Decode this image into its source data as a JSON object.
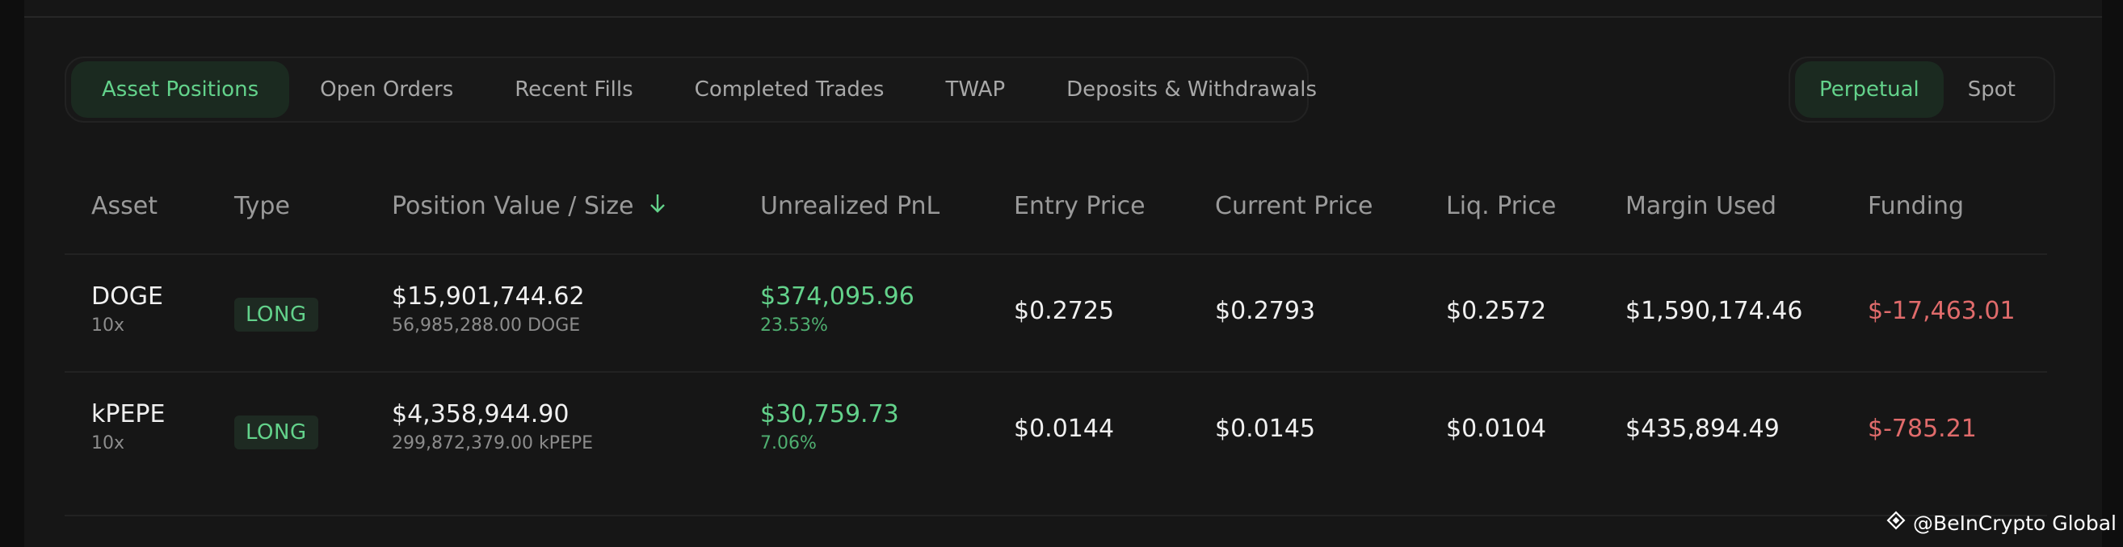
{
  "tabs": [
    {
      "label": "Asset Positions",
      "active": true
    },
    {
      "label": "Open Orders",
      "active": false
    },
    {
      "label": "Recent Fills",
      "active": false
    },
    {
      "label": "Completed Trades",
      "active": false
    },
    {
      "label": "TWAP",
      "active": false
    },
    {
      "label": "Deposits & Withdrawals",
      "active": false
    }
  ],
  "mode": [
    {
      "label": "Perpetual",
      "active": true
    },
    {
      "label": "Spot",
      "active": false
    }
  ],
  "columns": {
    "asset": "Asset",
    "type": "Type",
    "position": "Position Value / Size",
    "sort_icon": "arrow-down-icon",
    "pnl": "Unrealized PnL",
    "entry": "Entry Price",
    "current": "Current Price",
    "liq": "Liq. Price",
    "margin": "Margin Used",
    "funding": "Funding"
  },
  "rows": [
    {
      "asset": "DOGE",
      "leverage": "10x",
      "type": "LONG",
      "position_value": "$15,901,744.62",
      "position_size": "56,985,288.00 DOGE",
      "pnl": "$374,095.96",
      "pnl_pct": "23.53%",
      "entry": "$0.2725",
      "current": "$0.2793",
      "liq": "$0.2572",
      "margin": "$1,590,174.46",
      "funding": "$-17,463.01"
    },
    {
      "asset": "kPEPE",
      "leverage": "10x",
      "type": "LONG",
      "position_value": "$4,358,944.90",
      "position_size": "299,872,379.00 kPEPE",
      "pnl": "$30,759.73",
      "pnl_pct": "7.06%",
      "entry": "$0.0144",
      "current": "$0.0145",
      "liq": "$0.0104",
      "margin": "$435,894.49",
      "funding": "$-785.21"
    }
  ],
  "colors": {
    "accent_green": "#63d28b",
    "negative_red": "#e06b6b",
    "background": "#161616"
  },
  "watermark": {
    "text": "@BeInCrypto Global",
    "icon": "beincrypto-logo-icon"
  }
}
